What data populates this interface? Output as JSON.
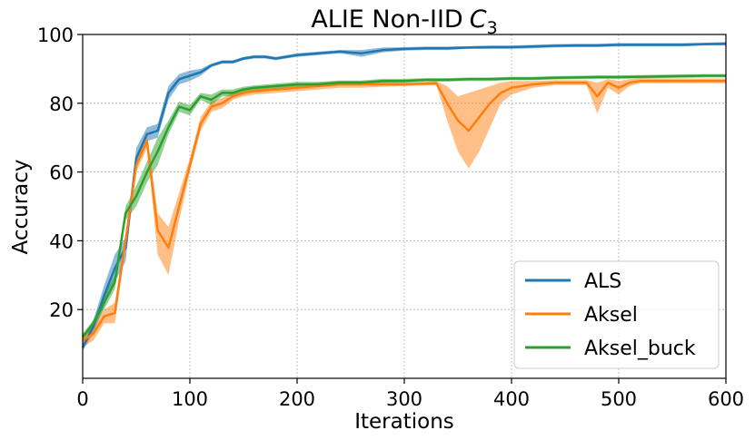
{
  "chart_data": {
    "type": "line",
    "title": "ALIE Non-IID",
    "title_symbol": "C",
    "title_subscript": "3",
    "xlabel": "Iterations",
    "ylabel": "Accuracy",
    "xlim": [
      0,
      600
    ],
    "ylim": [
      0,
      100
    ],
    "xticks": [
      0,
      100,
      200,
      300,
      400,
      500,
      600
    ],
    "yticks": [
      20,
      40,
      60,
      80,
      100
    ],
    "grid": true,
    "legend_position": "lower-right",
    "series": [
      {
        "name": "ALS",
        "color": "#1f77b4",
        "x": [
          0,
          10,
          20,
          30,
          40,
          50,
          60,
          70,
          80,
          90,
          100,
          110,
          120,
          130,
          140,
          150,
          160,
          170,
          180,
          190,
          200,
          220,
          240,
          260,
          280,
          300,
          320,
          340,
          360,
          380,
          400,
          420,
          440,
          460,
          480,
          500,
          520,
          540,
          560,
          580,
          600
        ],
        "y": [
          9,
          15,
          24,
          32,
          38,
          64,
          71,
          72,
          83,
          87,
          88,
          89,
          91,
          92,
          92,
          93,
          93.5,
          93.5,
          93,
          93.5,
          94,
          94.5,
          95,
          94.5,
          95.5,
          95.8,
          96,
          96,
          96.2,
          96.3,
          96.3,
          96.5,
          96.7,
          96.8,
          96.8,
          97,
          97,
          97,
          97,
          97.2,
          97.3
        ],
        "lower": [
          8,
          13,
          21,
          28,
          34,
          61,
          69,
          70,
          81,
          85.5,
          86.5,
          88,
          90.5,
          91.5,
          91.5,
          92.5,
          93,
          93,
          92.5,
          93,
          93.5,
          94,
          94.5,
          93.5,
          94.8,
          95.3,
          95.5,
          95.5,
          95.8,
          95.8,
          95.8,
          96,
          96.2,
          96.3,
          96.3,
          96.5,
          96.5,
          96.5,
          96.5,
          96.8,
          96.8
        ],
        "upper": [
          10,
          17,
          27,
          36,
          41,
          67,
          73,
          74,
          85,
          88.5,
          89.5,
          90,
          91.5,
          92.5,
          92.5,
          93.5,
          94,
          94,
          93.5,
          94,
          94.5,
          95,
          95.5,
          95.5,
          96.2,
          96.3,
          96.5,
          96.5,
          96.6,
          96.8,
          96.8,
          97,
          97.2,
          97.3,
          97.3,
          97.5,
          97.5,
          97.5,
          97.5,
          97.6,
          97.8
        ]
      },
      {
        "name": "Aksel",
        "color": "#ff7f0e",
        "x": [
          0,
          10,
          20,
          30,
          40,
          50,
          60,
          70,
          80,
          90,
          100,
          110,
          120,
          130,
          140,
          150,
          160,
          180,
          200,
          220,
          240,
          260,
          280,
          300,
          330,
          340,
          350,
          360,
          370,
          380,
          390,
          400,
          420,
          440,
          460,
          470,
          480,
          490,
          500,
          510,
          520,
          540,
          560,
          580,
          600
        ],
        "y": [
          11,
          13,
          18,
          19,
          40,
          62,
          69,
          43,
          38,
          50,
          62,
          74,
          79,
          80,
          82,
          83,
          83.5,
          84,
          84.5,
          85,
          85.5,
          85.5,
          85.5,
          85.5,
          85.8,
          80,
          75,
          72,
          76,
          80,
          83,
          84.5,
          85.5,
          86,
          86,
          86,
          82,
          86,
          84.5,
          86,
          86.5,
          86.5,
          86.5,
          86.5,
          86.5
        ],
        "lower": [
          9,
          11,
          16,
          16,
          38,
          60,
          67,
          36,
          30,
          46,
          60,
          72,
          77.5,
          78.5,
          81,
          82,
          82.5,
          83,
          83.5,
          84,
          84.5,
          84.5,
          84.8,
          85,
          85.2,
          75,
          66,
          61,
          66,
          73,
          80,
          82.5,
          84.5,
          85.3,
          85.3,
          85.3,
          77,
          84.5,
          82.5,
          85,
          85.8,
          85.8,
          85.8,
          85.8,
          85.8
        ],
        "upper": [
          13,
          15,
          20,
          22,
          42,
          64,
          71,
          48,
          44,
          54,
          64,
          76,
          80.5,
          81.5,
          83,
          84,
          84.5,
          85,
          85.5,
          86,
          86.5,
          86.5,
          86.2,
          86,
          86.4,
          85,
          82,
          83,
          84,
          85,
          86,
          86.5,
          86.5,
          86.7,
          86.7,
          86.7,
          86,
          87,
          86.5,
          87,
          87.2,
          87.2,
          87.2,
          87.2,
          87.2
        ]
      },
      {
        "name": "Aksel_buck",
        "color": "#2ca02c",
        "x": [
          0,
          10,
          20,
          30,
          40,
          50,
          60,
          70,
          80,
          90,
          100,
          110,
          120,
          130,
          140,
          150,
          160,
          180,
          200,
          220,
          240,
          260,
          280,
          300,
          320,
          340,
          360,
          380,
          400,
          420,
          440,
          460,
          480,
          500,
          520,
          540,
          560,
          580,
          600
        ],
        "y": [
          12,
          16,
          22,
          28,
          48,
          53,
          60,
          66,
          73,
          79,
          78,
          82,
          81,
          83,
          83,
          84,
          84.5,
          85,
          85.5,
          85.5,
          86,
          86,
          86.5,
          86.5,
          86.8,
          86.8,
          87,
          87,
          87.2,
          87.2,
          87.4,
          87.5,
          87.6,
          87.6,
          87.7,
          87.8,
          87.9,
          88,
          88
        ],
        "lower": [
          11,
          15,
          20,
          26,
          46,
          50,
          57,
          62,
          71,
          77.5,
          76.5,
          81,
          79.5,
          82,
          82,
          83.2,
          83.8,
          84.3,
          84.8,
          84.8,
          85.4,
          85.4,
          85.9,
          85.9,
          86.3,
          86.3,
          86.5,
          86.5,
          86.7,
          86.7,
          86.9,
          87,
          87.1,
          87.1,
          87.2,
          87.3,
          87.4,
          87.5,
          87.5
        ],
        "upper": [
          13,
          17,
          24,
          30,
          50,
          56,
          63,
          70,
          75,
          80.5,
          79.5,
          83,
          82.5,
          84,
          84,
          84.8,
          85.2,
          85.7,
          86.2,
          86.2,
          86.6,
          86.6,
          87.1,
          87.1,
          87.3,
          87.3,
          87.5,
          87.5,
          87.7,
          87.7,
          87.9,
          88,
          88.1,
          88.1,
          88.2,
          88.3,
          88.4,
          88.5,
          88.5
        ]
      }
    ]
  }
}
